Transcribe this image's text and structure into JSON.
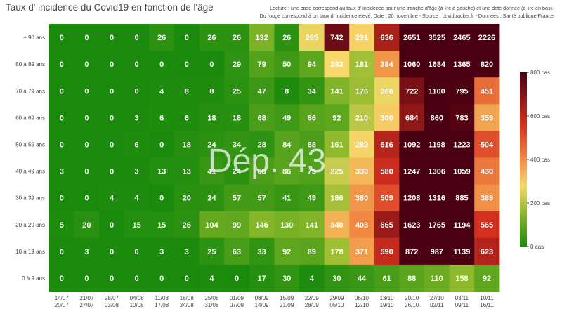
{
  "header": {
    "title": "Taux d' incidence du Covid19 en fonction de l'âge",
    "subtitle_lines": [
      "Lecture : une case correspond au taux d' incidence pour une tranche d'âge (à lire à gauche) et une date donnée (à lire en bas).",
      "Du rouge correspond à un taux d' incidence élevé.  Date : 20 novembre - Source : covidtracker.fr - Données : Santé publique France"
    ]
  },
  "watermark": "Dép. 43",
  "colors": {
    "low": "#1a8a0c",
    "mid_low": "#8fba2c",
    "mid": "#f7d96a",
    "mid_high": "#f08a44",
    "high": "#d7301f",
    "very_high": "#4a0010"
  },
  "chart_data": {
    "type": "heatmap",
    "title": "Taux d' incidence du Covid19 en fonction de l'âge",
    "y_categories": [
      "+ 90 ans",
      "80 à 89 ans",
      "70 à 79 ans",
      "60 à 69 ans",
      "50 à 59 ans",
      "40 à 49 ans",
      "30 à 39 ans",
      "20 à 29 ans",
      "10 à 19 ans",
      "0 à 9 ans"
    ],
    "x_categories": [
      [
        "14/07",
        "20/07"
      ],
      [
        "21/07",
        "27/07"
      ],
      [
        "28/07",
        "03/08"
      ],
      [
        "04/08",
        "10/08"
      ],
      [
        "11/08",
        "17/08"
      ],
      [
        "18/08",
        "24/08"
      ],
      [
        "25/08",
        "31/08"
      ],
      [
        "01/09",
        "07/09"
      ],
      [
        "08/09",
        "14/09"
      ],
      [
        "15/09",
        "21/09"
      ],
      [
        "22/09",
        "28/09"
      ],
      [
        "29/09",
        "05/10"
      ],
      [
        "06/10",
        "12/10"
      ],
      [
        "13/10",
        "19/10"
      ],
      [
        "20/10",
        "26/10"
      ],
      [
        "27/10",
        "02/11"
      ],
      [
        "03/11",
        "09/11"
      ],
      [
        "10/11",
        "16/11"
      ]
    ],
    "values": [
      [
        0,
        0,
        0,
        0,
        26,
        0,
        26,
        26,
        132,
        26,
        265,
        742,
        291,
        636,
        2651,
        3525,
        2465,
        2226
      ],
      [
        0,
        0,
        0,
        0,
        0,
        0,
        0,
        29,
        79,
        50,
        94,
        283,
        181,
        384,
        1060,
        1684,
        1365,
        820
      ],
      [
        0,
        0,
        0,
        0,
        4,
        8,
        8,
        25,
        47,
        8,
        34,
        141,
        176,
        266,
        722,
        1100,
        795,
        451
      ],
      [
        0,
        0,
        0,
        3,
        6,
        6,
        18,
        18,
        68,
        49,
        86,
        92,
        210,
        300,
        684,
        860,
        783,
        359
      ],
      [
        0,
        0,
        0,
        6,
        0,
        18,
        24,
        34,
        28,
        84,
        68,
        161,
        289,
        616,
        1092,
        1198,
        1223,
        504
      ],
      [
        3,
        0,
        0,
        3,
        13,
        13,
        41,
        24,
        68,
        86,
        75,
        225,
        330,
        580,
        1247,
        1306,
        1059,
        430
      ],
      [
        0,
        0,
        4,
        4,
        0,
        20,
        24,
        57,
        57,
        41,
        49,
        186,
        380,
        509,
        1208,
        1316,
        885,
        389
      ],
      [
        5,
        20,
        0,
        15,
        15,
        26,
        104,
        99,
        146,
        130,
        141,
        340,
        403,
        665,
        1623,
        1765,
        1194,
        565
      ],
      [
        0,
        3,
        0,
        0,
        3,
        3,
        25,
        63,
        33,
        92,
        89,
        178,
        371,
        590,
        872,
        987,
        1139,
        623
      ],
      [
        0,
        0,
        0,
        0,
        0,
        0,
        4,
        0,
        17,
        30,
        4,
        30,
        44,
        61,
        88,
        110,
        158,
        92
      ]
    ],
    "colorbar": {
      "min": 0,
      "max": 800,
      "ticks": [
        0,
        200,
        400,
        600,
        800
      ],
      "tick_labels": [
        "0 cas",
        "200 cas",
        "400 cas",
        "600 cas",
        "800 cas"
      ]
    }
  }
}
